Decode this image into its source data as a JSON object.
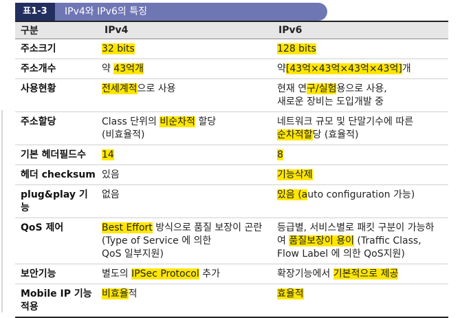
{
  "caption": {
    "label": "표1-3",
    "title": "IPv4와 IPv6의 특징"
  },
  "table": {
    "headers": [
      "구분",
      "IPv4",
      "IPv6"
    ],
    "rows": [
      {
        "name": "주소크기",
        "v4": [
          [
            {
              "t": "32 bits",
              "hl": 1
            }
          ]
        ],
        "v6": [
          [
            {
              "t": "128 bits",
              "hl": 1
            }
          ]
        ]
      },
      {
        "name": "주소개수",
        "v4": [
          [
            {
              "t": "약 "
            },
            {
              "t": "43억개",
              "hl": 1
            }
          ]
        ],
        "v6": [
          [
            {
              "t": "약"
            },
            {
              "t": "[43억×43억×43억×43억]",
              "hl": 1
            },
            {
              "t": "개"
            }
          ]
        ]
      },
      {
        "name": "사용현황",
        "v4": [
          [
            {
              "t": "전세계적",
              "hl": 1
            },
            {
              "t": "으로 사용"
            }
          ]
        ],
        "v6": [
          [
            {
              "t": "현재 연"
            },
            {
              "t": "구/실험",
              "hl": 1
            },
            {
              "t": "용으로 사용,"
            }
          ],
          [
            {
              "t": "새로운 장비는 도입개발 중"
            }
          ]
        ]
      },
      {
        "name": "주소할당",
        "v4": [
          [
            {
              "t": "Class 단위의 "
            },
            {
              "t": "비순차적",
              "hl": 1
            },
            {
              "t": " 할당"
            }
          ],
          [
            {
              "t": "(비효율적)"
            }
          ]
        ],
        "v6": [
          [
            {
              "t": "네트워크 규모 및 단말기수에 따른"
            }
          ],
          [
            {
              "t": "순차적할",
              "hl": 1
            },
            {
              "t": "당 (효율적)"
            }
          ]
        ]
      },
      {
        "name": "기본 헤더필드수",
        "v4": [
          [
            {
              "t": "14",
              "hl": 1
            }
          ]
        ],
        "v6": [
          [
            {
              "t": "8",
              "hl": 1
            }
          ]
        ]
      },
      {
        "name": "헤더 checksum",
        "v4": [
          [
            {
              "t": "있음"
            }
          ]
        ],
        "v6": [
          [
            {
              "t": "기능삭제",
              "hl": 1
            }
          ]
        ]
      },
      {
        "name": "plug&play 기능",
        "v4": [
          [
            {
              "t": "없음"
            }
          ]
        ],
        "v6": [
          [
            {
              "t": "있음 (a",
              "hl": 1
            },
            {
              "t": "uto configuration 가능)"
            }
          ]
        ]
      },
      {
        "name": "QoS 제어",
        "v4": [
          [
            {
              "t": "Best Effort",
              "hl": 1
            },
            {
              "t": " 방식으로 품질 보장이 곤란"
            }
          ],
          [
            {
              "t": "(Type of Service 에 의한"
            }
          ],
          [
            {
              "t": "QoS 일부지원)"
            }
          ]
        ],
        "v6": [
          [
            {
              "t": "등급별, 서비스별로 패킷 구분이 가능하"
            }
          ],
          [
            {
              "t": "여 "
            },
            {
              "t": "품질보장이 용이",
              "hl": 1
            },
            {
              "t": " (Traffic Class,"
            }
          ],
          [
            {
              "t": "Flow Label 에 의한 QoS지원)"
            }
          ]
        ]
      },
      {
        "name": "보안기능",
        "v4": [
          [
            {
              "t": "별도의 "
            },
            {
              "t": "IPSec Protocol",
              "hl": 1
            },
            {
              "t": " 추가"
            }
          ]
        ],
        "v6": [
          [
            {
              "t": "확장기능에서 "
            },
            {
              "t": "기본적으로 제공",
              "hl": 1
            }
          ]
        ]
      },
      {
        "name": "Mobile IP 기능 적용",
        "v4": [
          [
            {
              "t": "비효율",
              "hl": 1
            },
            {
              "t": "적"
            }
          ]
        ],
        "v6": [
          [
            {
              "t": "효율적",
              "hl": 1
            }
          ]
        ]
      }
    ]
  }
}
